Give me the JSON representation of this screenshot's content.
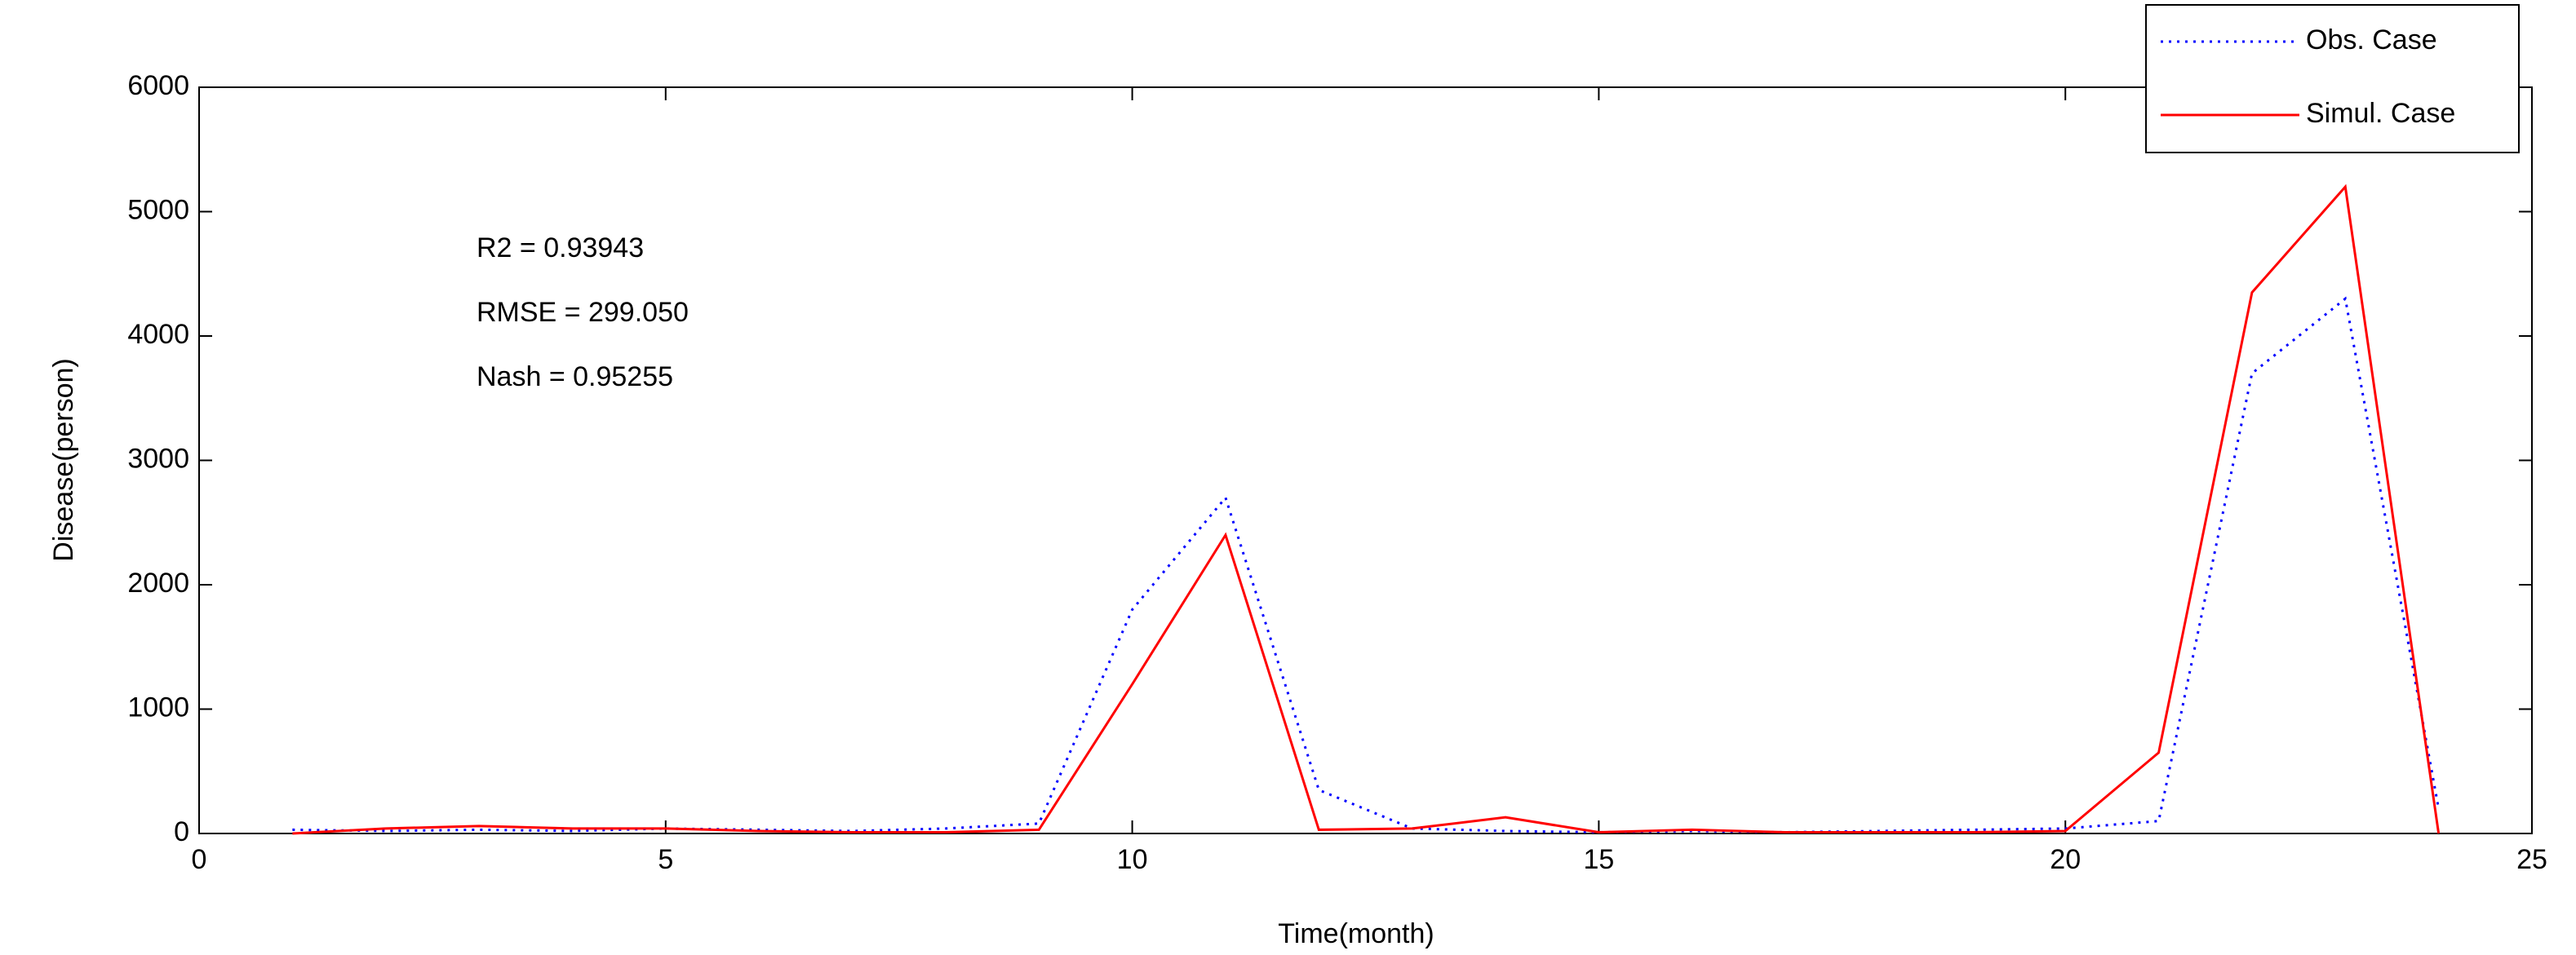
{
  "chart_data": {
    "type": "line",
    "xlabel": "Time(month)",
    "ylabel": "Disease(person)",
    "x": [
      1,
      2,
      3,
      4,
      5,
      6,
      7,
      8,
      9,
      10,
      11,
      12,
      13,
      14,
      15,
      16,
      17,
      18,
      19,
      20,
      21,
      22,
      23,
      24
    ],
    "series": [
      {
        "name": "Obs. Case",
        "color": "#0000ff",
        "style": "dotted",
        "values": [
          30,
          20,
          30,
          20,
          40,
          30,
          20,
          40,
          80,
          1800,
          2700,
          350,
          40,
          20,
          10,
          20,
          10,
          20,
          30,
          40,
          100,
          3700,
          4300,
          200
        ]
      },
      {
        "name": "Simul. Case",
        "color": "#ff0000",
        "style": "solid",
        "values": [
          0,
          40,
          60,
          40,
          40,
          20,
          10,
          10,
          30,
          1200,
          2400,
          30,
          40,
          130,
          10,
          30,
          10,
          10,
          10,
          20,
          650,
          4350,
          5200,
          0
        ]
      }
    ],
    "annotations": [
      "R2 = 0.93943",
      "RMSE = 299.050",
      "Nash = 0.95255"
    ],
    "xlim": [
      0,
      25
    ],
    "xticks": [
      0,
      5,
      10,
      15,
      20,
      25
    ],
    "ylim": [
      0,
      6000
    ],
    "yticks": [
      0,
      1000,
      2000,
      3000,
      4000,
      5000,
      6000
    ],
    "legend": "northeast"
  }
}
